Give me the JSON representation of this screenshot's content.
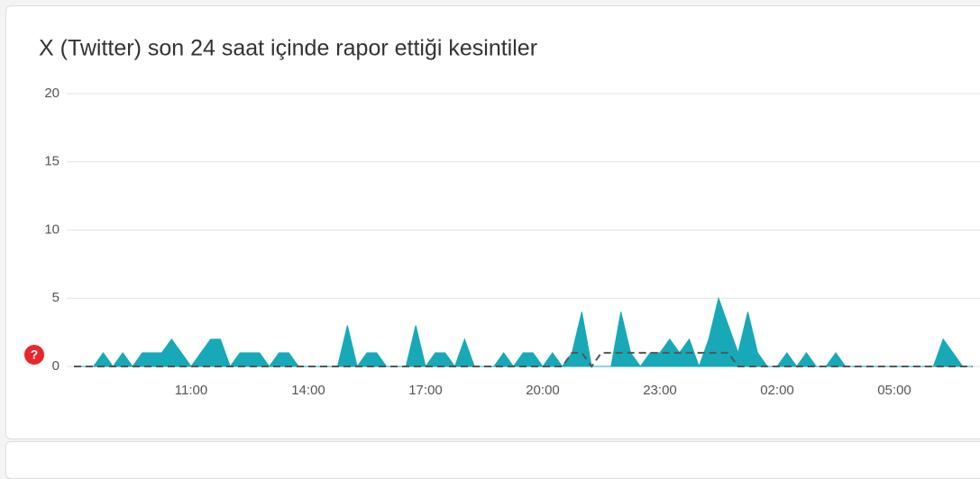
{
  "chart_data": {
    "type": "area",
    "title": "X (Twitter) son 24 saat içinde rapor ettiği kesintiler",
    "categories": [
      null,
      null,
      null,
      null,
      null,
      null,
      null,
      null,
      null,
      null,
      null,
      null,
      "11:00",
      null,
      null,
      null,
      null,
      null,
      null,
      null,
      null,
      null,
      null,
      null,
      "14:00",
      null,
      null,
      null,
      null,
      null,
      null,
      null,
      null,
      null,
      null,
      null,
      "17:00",
      null,
      null,
      null,
      null,
      null,
      null,
      null,
      null,
      null,
      null,
      null,
      "20:00",
      null,
      null,
      null,
      null,
      null,
      null,
      null,
      null,
      null,
      null,
      null,
      "23:00",
      null,
      null,
      null,
      null,
      null,
      null,
      null,
      null,
      null,
      null,
      null,
      "02:00",
      null,
      null,
      null,
      null,
      null,
      null,
      null,
      null,
      null,
      null,
      null,
      "05:00",
      null,
      null,
      null,
      null,
      null,
      null,
      null,
      null
    ],
    "series": [
      {
        "color": "#17a9b8",
        "values": [
          0,
          0,
          0,
          1,
          0,
          1,
          0,
          1,
          1,
          1,
          2,
          1,
          0,
          1,
          2,
          2,
          0,
          1,
          1,
          1,
          0,
          1,
          1,
          0,
          0,
          0,
          0,
          0,
          3,
          0,
          1,
          1,
          0,
          0,
          0,
          3,
          0,
          1,
          1,
          0,
          2,
          0,
          0,
          0,
          1,
          0,
          1,
          1,
          0,
          1,
          0,
          1,
          4,
          0,
          0,
          0,
          4,
          1,
          0,
          1,
          1,
          2,
          1,
          2,
          0,
          2,
          5,
          3,
          1,
          4,
          1,
          0,
          0,
          1,
          0,
          1,
          0,
          0,
          1,
          0,
          0,
          0,
          0,
          0,
          0,
          0,
          0,
          0,
          0,
          2,
          1,
          0,
          0
        ]
      },
      {
        "color": "#555555",
        "dashed": true,
        "values": [
          0,
          0,
          0,
          0,
          0,
          0,
          0,
          0,
          0,
          0,
          0,
          0,
          0,
          0,
          0,
          0,
          0,
          0,
          0,
          0,
          0,
          0,
          0,
          0,
          0,
          0,
          0,
          0,
          0,
          0,
          0,
          0,
          0,
          0,
          0,
          0,
          0,
          0,
          0,
          0,
          0,
          0,
          0,
          0,
          0,
          0,
          0,
          0,
          0,
          0,
          0,
          1,
          1,
          0,
          1,
          1,
          1,
          1,
          1,
          1,
          1,
          1,
          1,
          1,
          1,
          1,
          1,
          1,
          0,
          0,
          0,
          0,
          0,
          0,
          0,
          0,
          0,
          0,
          0,
          0,
          0,
          0,
          0,
          0,
          0,
          0,
          0,
          0,
          0,
          0,
          0,
          0,
          0
        ]
      }
    ],
    "ylim": [
      0,
      20
    ],
    "yticks": [
      0,
      5,
      10,
      15,
      20
    ],
    "grid": true
  }
}
